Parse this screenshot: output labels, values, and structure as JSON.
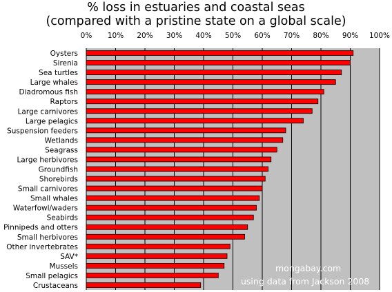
{
  "chart_data": {
    "type": "bar",
    "orientation": "horizontal",
    "title_line1": "% loss in estuaries and coastal seas",
    "title_line2": "(compared with a pristine state on a global scale)",
    "xlabel": "",
    "ylabel": "",
    "xlim": [
      0,
      100
    ],
    "x_ticks": [
      "0%",
      "10%",
      "20%",
      "30%",
      "40%",
      "50%",
      "60%",
      "70%",
      "80%",
      "90%",
      "100%"
    ],
    "grid": true,
    "categories": [
      "Oysters",
      "Sirenia",
      "Sea turtles",
      "Large whales",
      "Diadromous fish",
      "Raptors",
      "Large carnivores",
      "Large pelagics",
      "Suspension feeders",
      "Wetlands",
      "Seagrass",
      "Large herbivores",
      "Groundfish",
      "Shorebirds",
      "Small carnivores",
      "Small whales",
      "Waterfowl/waders",
      "Seabirds",
      "Pinnipeds and otters",
      "Small herbivores",
      "Other invertebrates",
      "SAV*",
      "Mussels",
      "Small pelagics",
      "Crustaceans"
    ],
    "values": [
      91,
      90,
      87,
      85,
      81,
      79,
      77,
      74,
      68,
      67,
      65,
      63,
      62,
      61,
      60,
      59,
      58,
      57,
      55,
      54,
      49,
      48,
      47,
      45,
      39
    ],
    "credit_line1": "mongabay.com",
    "credit_line2": "using data from Jackson 2008",
    "colors": {
      "bar_fill": "#ff0000",
      "bar_stroke": "#000000",
      "plot_bg": "#c0c0c0",
      "grid": "#000000",
      "credit_text": "#ffffff"
    }
  }
}
